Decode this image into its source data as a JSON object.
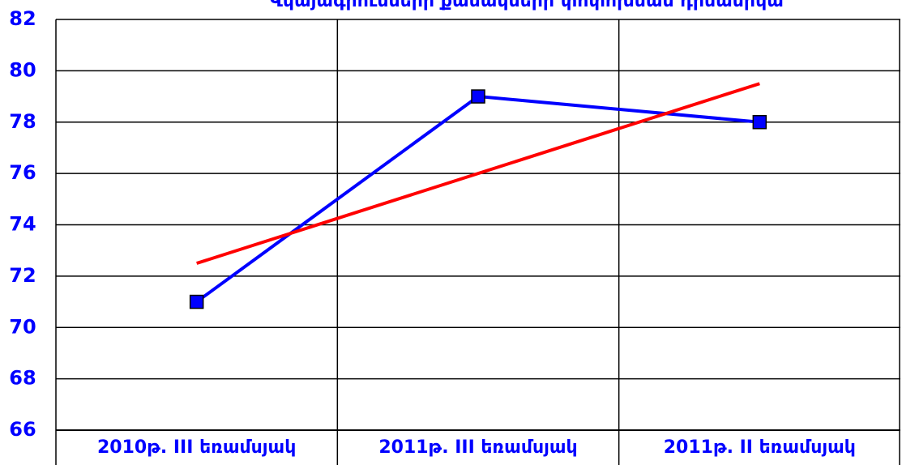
{
  "chart_data": {
    "type": "line",
    "title": "Վկայագրումների քանակների փոփոխման դինամիկա",
    "categories": [
      "2010թ. III եռամսյակ",
      "2011թ. III եռամսյակ",
      "2011թ. II եռամսյակ"
    ],
    "series": [
      {
        "color": "#0000ff",
        "values": [
          71,
          79,
          78
        ],
        "marker": "square"
      },
      {
        "color": "#ff0000",
        "values": [
          72.5,
          76,
          79.5
        ]
      }
    ],
    "ylim": [
      66,
      82
    ],
    "yticks": [
      66,
      68,
      70,
      72,
      74,
      76,
      78,
      80,
      82
    ],
    "grid": true
  }
}
